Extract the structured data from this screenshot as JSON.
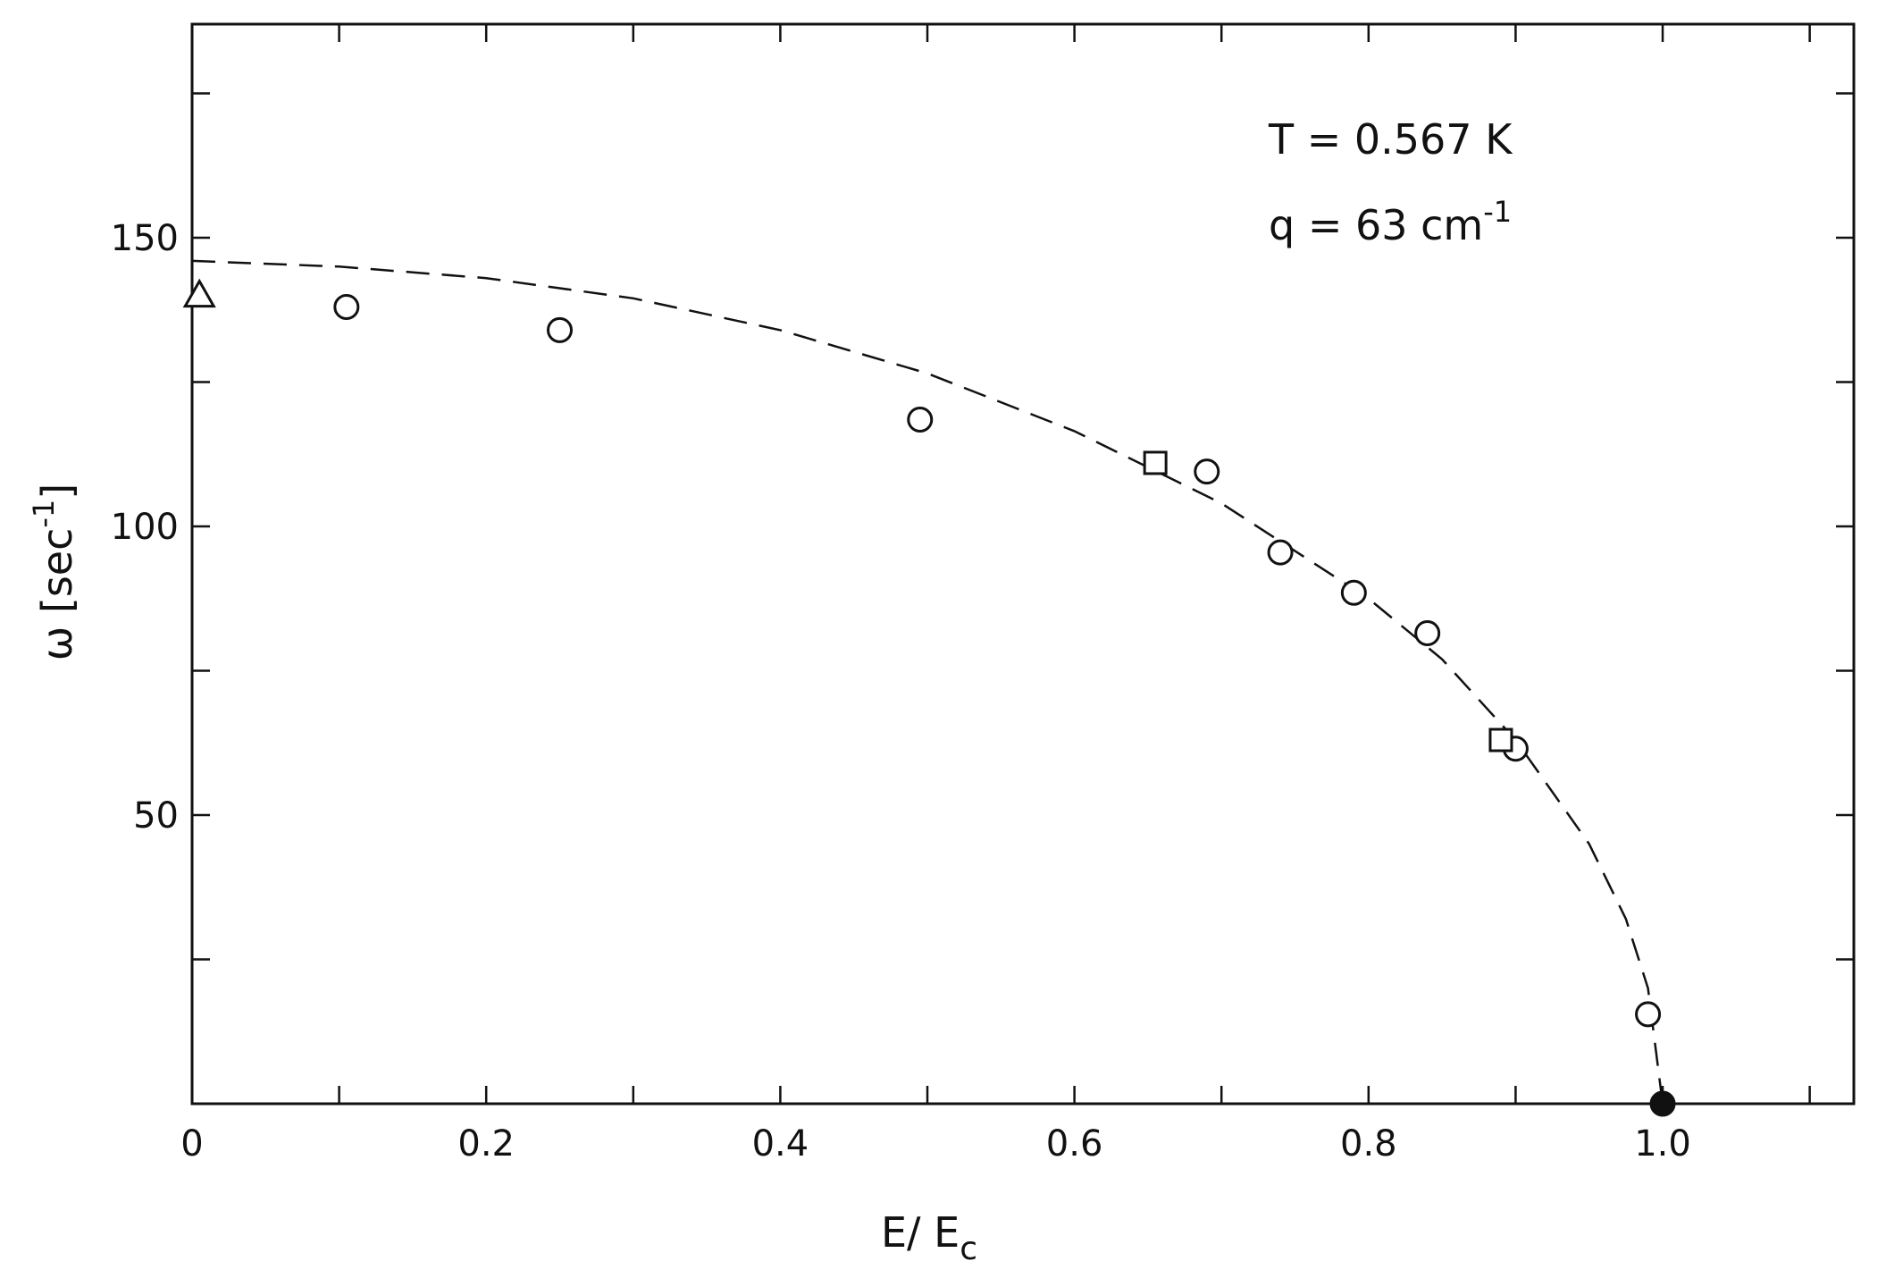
{
  "chart_data": {
    "type": "scatter",
    "xlabel": {
      "main": "E/ E",
      "sub": "c"
    },
    "ylabel": {
      "main": "ω [sec",
      "sup": "-1",
      "close": "]"
    },
    "xlim": [
      0,
      1.13
    ],
    "ylim": [
      0,
      187
    ],
    "x_ticks": [
      0,
      0.1,
      0.2,
      0.3,
      0.4,
      0.5,
      0.6,
      0.7,
      0.8,
      0.9,
      1.0,
      1.1
    ],
    "x_tick_labels": [
      {
        "value": 0,
        "label": "0"
      },
      {
        "value": 0.2,
        "label": "0.2"
      },
      {
        "value": 0.4,
        "label": "0.4"
      },
      {
        "value": 0.6,
        "label": "0.6"
      },
      {
        "value": 0.8,
        "label": "0.8"
      },
      {
        "value": 1.0,
        "label": "1.0"
      }
    ],
    "y_ticks": [
      0,
      25,
      50,
      75,
      100,
      125,
      150,
      175
    ],
    "y_tick_labels": [
      {
        "value": 50,
        "label": "50"
      },
      {
        "value": 100,
        "label": "100"
      },
      {
        "value": 150,
        "label": "150"
      }
    ],
    "annotations": [
      {
        "text": "T = 0.567 K"
      },
      {
        "text": "q =  63 cm",
        "sup": "-1"
      }
    ],
    "series": [
      {
        "marker": "circle-open",
        "points": [
          {
            "x": 0.105,
            "y": 138
          },
          {
            "x": 0.25,
            "y": 134
          },
          {
            "x": 0.495,
            "y": 118.5
          },
          {
            "x": 0.69,
            "y": 109.5
          },
          {
            "x": 0.74,
            "y": 95.5
          },
          {
            "x": 0.79,
            "y": 88.5
          },
          {
            "x": 0.84,
            "y": 81.5
          },
          {
            "x": 0.9,
            "y": 61.5
          },
          {
            "x": 0.99,
            "y": 15.5
          }
        ]
      },
      {
        "marker": "square-open",
        "points": [
          {
            "x": 0.655,
            "y": 111
          },
          {
            "x": 0.89,
            "y": 63
          }
        ]
      },
      {
        "marker": "triangle-open",
        "points": [
          {
            "x": 0.005,
            "y": 140
          }
        ]
      },
      {
        "marker": "circle-filled",
        "points": [
          {
            "x": 1.0,
            "y": 0
          }
        ]
      }
    ],
    "fit_curve": {
      "style": "dashed",
      "points": [
        {
          "x": 0.0,
          "y": 146
        },
        {
          "x": 0.1,
          "y": 145
        },
        {
          "x": 0.2,
          "y": 143
        },
        {
          "x": 0.3,
          "y": 139.5
        },
        {
          "x": 0.4,
          "y": 134
        },
        {
          "x": 0.5,
          "y": 126.5
        },
        {
          "x": 0.6,
          "y": 116.5
        },
        {
          "x": 0.7,
          "y": 104
        },
        {
          "x": 0.8,
          "y": 87.5
        },
        {
          "x": 0.85,
          "y": 77
        },
        {
          "x": 0.9,
          "y": 63
        },
        {
          "x": 0.95,
          "y": 45
        },
        {
          "x": 0.975,
          "y": 32
        },
        {
          "x": 0.99,
          "y": 20
        },
        {
          "x": 1.0,
          "y": 0
        }
      ]
    }
  }
}
